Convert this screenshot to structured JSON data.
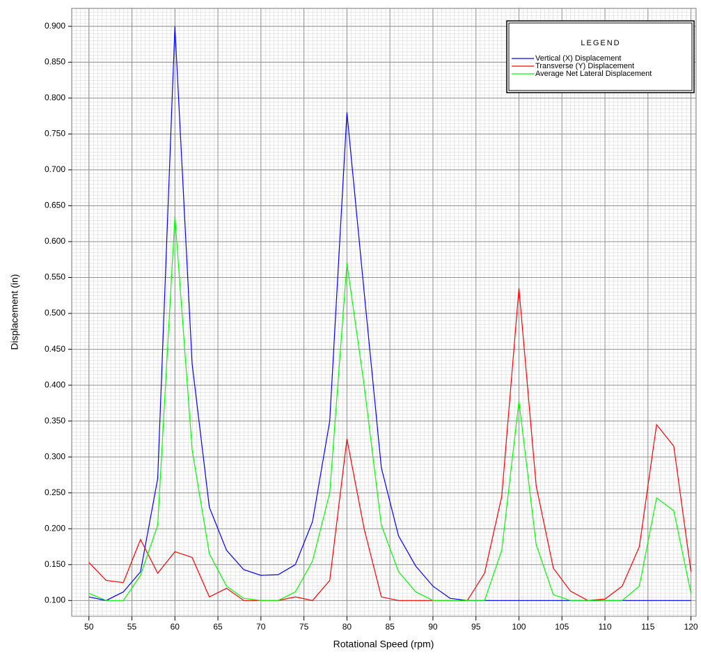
{
  "chart_data": {
    "type": "line",
    "x_label": "Rotational Speed (rpm)",
    "y_label": "Displacement (in)",
    "legend_title": "LEGEND",
    "legend_position": "top-right",
    "grid": true,
    "xlim": [
      48,
      120.6
    ],
    "ylim": [
      0.078,
      0.925
    ],
    "xticks": [
      50,
      55,
      60,
      65,
      70,
      75,
      80,
      85,
      90,
      95,
      100,
      105,
      110,
      115,
      120
    ],
    "yticks": [
      {
        "value": 0.1,
        "label": "0.100"
      },
      {
        "value": 0.15,
        "label": "0.150"
      },
      {
        "value": 0.2,
        "label": "0.200"
      },
      {
        "value": 0.25,
        "label": "0.250"
      },
      {
        "value": 0.3,
        "label": "0.300"
      },
      {
        "value": 0.35,
        "label": "0.350"
      },
      {
        "value": 0.4,
        "label": "0.400"
      },
      {
        "value": 0.45,
        "label": "0.450"
      },
      {
        "value": 0.5,
        "label": "0.500"
      },
      {
        "value": 0.55,
        "label": "0.550"
      },
      {
        "value": 0.6,
        "label": "0.600"
      },
      {
        "value": 0.65,
        "label": "0.650"
      },
      {
        "value": 0.7,
        "label": "0.700"
      },
      {
        "value": 0.75,
        "label": "0.750"
      },
      {
        "value": 0.8,
        "label": "0.800"
      },
      {
        "value": 0.85,
        "label": "0.850"
      },
      {
        "value": 0.9,
        "label": "0.900"
      }
    ],
    "x": [
      50,
      52,
      54,
      56,
      58,
      60,
      62,
      64,
      66,
      68,
      70,
      72,
      74,
      76,
      78,
      80,
      82,
      84,
      86,
      88,
      90,
      92,
      94,
      96,
      98,
      100,
      102,
      104,
      106,
      108,
      110,
      112,
      114,
      116,
      118,
      120
    ],
    "series": [
      {
        "name": "Vertical (X) Displacement",
        "color": "#0000ff",
        "values": [
          0.105,
          0.1,
          0.112,
          0.14,
          0.27,
          0.9,
          0.43,
          0.23,
          0.17,
          0.143,
          0.135,
          0.136,
          0.15,
          0.21,
          0.35,
          0.78,
          0.53,
          0.285,
          0.19,
          0.148,
          0.12,
          0.103,
          0.1,
          0.1,
          0.1,
          0.1,
          0.1,
          0.1,
          0.1,
          0.1,
          0.1,
          0.1,
          0.1,
          0.1,
          0.1,
          0.1
        ]
      },
      {
        "name": "Transverse (Y) Displacement",
        "color": "#ff0000",
        "values": [
          0.153,
          0.128,
          0.125,
          0.185,
          0.138,
          0.168,
          0.16,
          0.105,
          0.117,
          0.1,
          0.1,
          0.1,
          0.105,
          0.1,
          0.128,
          0.325,
          0.2,
          0.105,
          0.1,
          0.1,
          0.1,
          0.1,
          0.1,
          0.138,
          0.245,
          0.535,
          0.26,
          0.145,
          0.113,
          0.1,
          0.102,
          0.12,
          0.175,
          0.345,
          0.315,
          0.14
        ]
      },
      {
        "name": "Average Net Lateral Displacement",
        "color": "#00ff00",
        "values": [
          0.11,
          0.1,
          0.1,
          0.135,
          0.205,
          0.635,
          0.31,
          0.165,
          0.12,
          0.103,
          0.1,
          0.1,
          0.112,
          0.155,
          0.25,
          0.57,
          0.4,
          0.205,
          0.14,
          0.112,
          0.1,
          0.1,
          0.1,
          0.1,
          0.17,
          0.378,
          0.178,
          0.108,
          0.1,
          0.1,
          0.1,
          0.1,
          0.12,
          0.243,
          0.225,
          0.11
        ]
      }
    ]
  }
}
